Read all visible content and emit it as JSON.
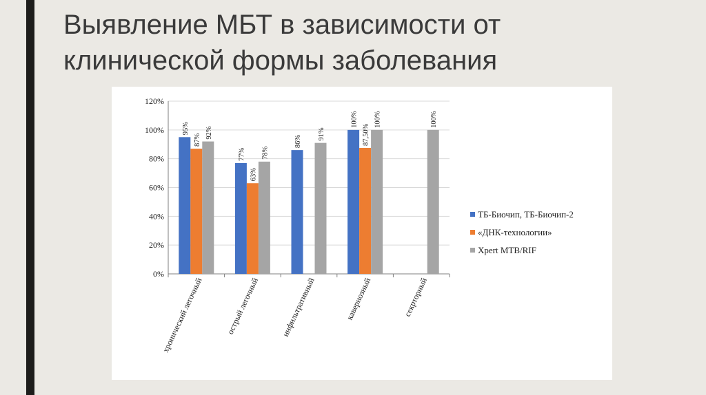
{
  "slide": {
    "title_line1": "Выявление МБТ в зависимости от",
    "title_line2": "клинической формы заболевания"
  },
  "chart_data": {
    "type": "bar",
    "categories": [
      "хронический легочный",
      "острый легочный",
      "инфильтративный",
      "кавернозный",
      "секрторный"
    ],
    "series": [
      {
        "name": "ТБ-Биочип, ТБ-Биочип-2",
        "color": "#4472c4",
        "values": [
          95,
          77,
          86,
          100,
          null
        ],
        "labels": [
          "95%",
          "77%",
          "86%",
          "100%",
          ""
        ]
      },
      {
        "name": "«ДНК-технологии»",
        "color": "#ed7d31",
        "values": [
          87,
          63,
          null,
          87.5,
          null
        ],
        "labels": [
          "87%",
          "63%",
          "",
          "87,50%",
          ""
        ]
      },
      {
        "name": "Xpert MTB/RIF",
        "color": "#a5a5a5",
        "values": [
          92,
          78,
          91,
          100,
          100
        ],
        "labels": [
          "92%",
          "78%",
          "91%",
          "100%",
          "100%"
        ]
      }
    ],
    "ylim": [
      0,
      120
    ],
    "yticks": [
      "0%",
      "20%",
      "40%",
      "60%",
      "80%",
      "100%",
      "120%"
    ],
    "grid": true,
    "legend": "right"
  }
}
